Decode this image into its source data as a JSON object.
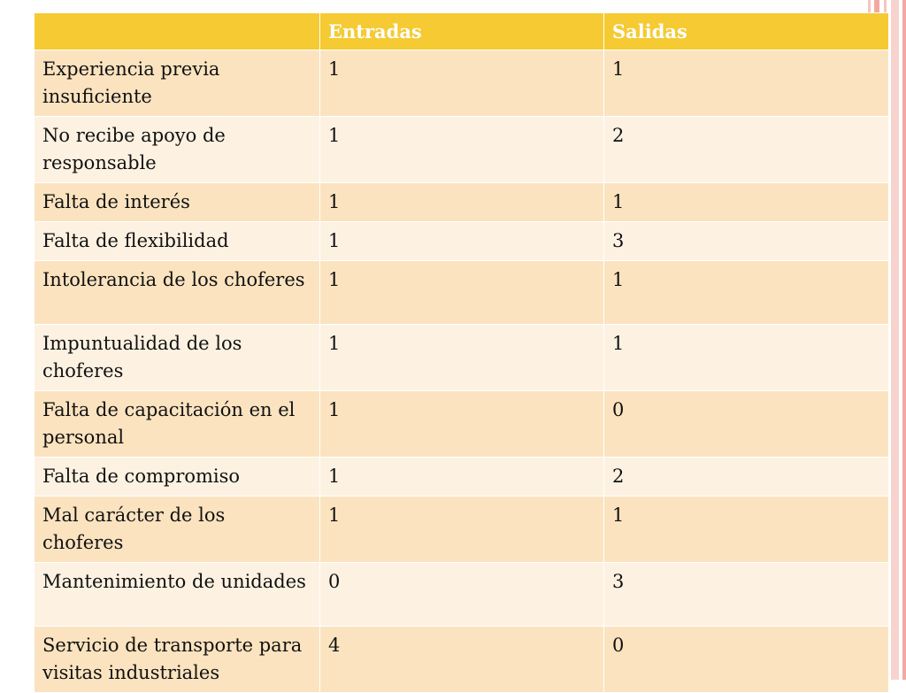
{
  "table": {
    "headers": [
      "",
      "Entradas",
      "Salidas"
    ],
    "rows": [
      {
        "label": "Experiencia previa insuficiente",
        "entradas": "1",
        "salidas": "1"
      },
      {
        "label": "No recibe apoyo de responsable",
        "entradas": "1",
        "salidas": "2"
      },
      {
        "label": "Falta de interés",
        "entradas": "1",
        "salidas": "1"
      },
      {
        "label": "Falta de flexibilidad",
        "entradas": "1",
        "salidas": "3"
      },
      {
        "label": "Intolerancia de los choferes",
        "entradas": "1",
        "salidas": "1"
      },
      {
        "label": "Impuntualidad de los choferes",
        "entradas": "1",
        "salidas": "1"
      },
      {
        "label": "Falta de capacitación en el personal",
        "entradas": "1",
        "salidas": "0"
      },
      {
        "label": "Falta de compromiso",
        "entradas": "1",
        "salidas": "2"
      },
      {
        "label": "Mal carácter de los choferes",
        "entradas": "1",
        "salidas": "1"
      },
      {
        "label": "Mantenimiento de unidades",
        "entradas": "0",
        "salidas": "3"
      },
      {
        "label": "Servicio de transporte para visitas industriales",
        "entradas": "4",
        "salidas": "0"
      }
    ]
  },
  "colors": {
    "header": "#f5ca33",
    "row_odd": "#fbe3c0",
    "row_even": "#fdf2e2",
    "stripe": "#f4a9a0"
  }
}
